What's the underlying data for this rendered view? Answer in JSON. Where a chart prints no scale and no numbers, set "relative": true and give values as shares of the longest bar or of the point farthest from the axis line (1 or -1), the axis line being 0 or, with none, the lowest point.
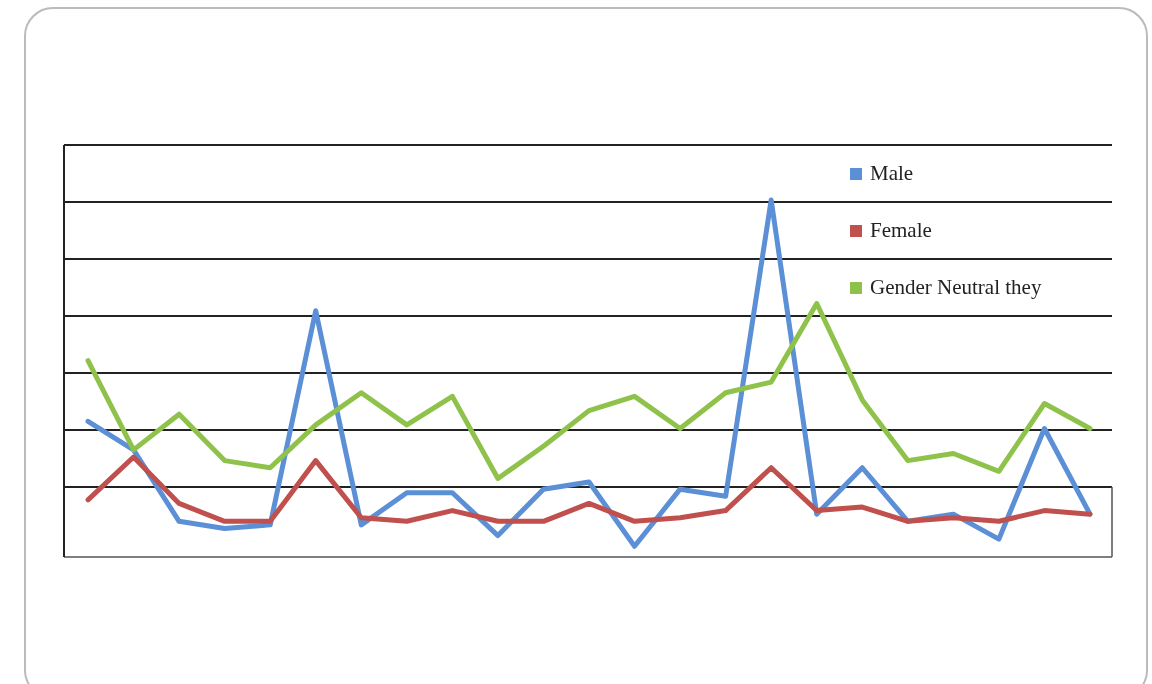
{
  "chart_data": {
    "type": "line",
    "relative": true,
    "grid": true,
    "legend": "top right",
    "marker": "none",
    "line_style": "solid",
    "categories": [
      null,
      null,
      null,
      null,
      null,
      null,
      null,
      null,
      null,
      null,
      null,
      null,
      null,
      null,
      null,
      null,
      null,
      null,
      null,
      null,
      null,
      null,
      null
    ],
    "series": [
      {
        "name": "Male",
        "color": "#5b8fd6",
        "values": [
          0.38,
          0.3,
          0.1,
          0.08,
          0.09,
          0.69,
          0.09,
          0.18,
          0.18,
          0.06,
          0.19,
          0.21,
          0.03,
          0.19,
          0.17,
          1,
          0.12,
          0.25,
          0.1,
          0.12,
          0.05,
          0.36,
          0.12
        ]
      },
      {
        "name": "Female",
        "color": "#c0504d",
        "values": [
          0.16,
          0.28,
          0.15,
          0.1,
          0.1,
          0.27,
          0.11,
          0.1,
          0.13,
          0.1,
          0.1,
          0.15,
          0.1,
          0.11,
          0.13,
          0.25,
          0.13,
          0.14,
          0.1,
          0.11,
          0.1,
          0.13,
          0.12
        ]
      },
      {
        "name": "Gender Neutral they",
        "color": "#8fc24a",
        "values": [
          0.55,
          0.3,
          0.4,
          0.27,
          0.25,
          0.37,
          0.46,
          0.37,
          0.45,
          0.22,
          0.31,
          0.41,
          0.45,
          0.36,
          0.46,
          0.49,
          0.71,
          0.44,
          0.27,
          0.29,
          0.24,
          0.43,
          0.36
        ]
      }
    ]
  }
}
